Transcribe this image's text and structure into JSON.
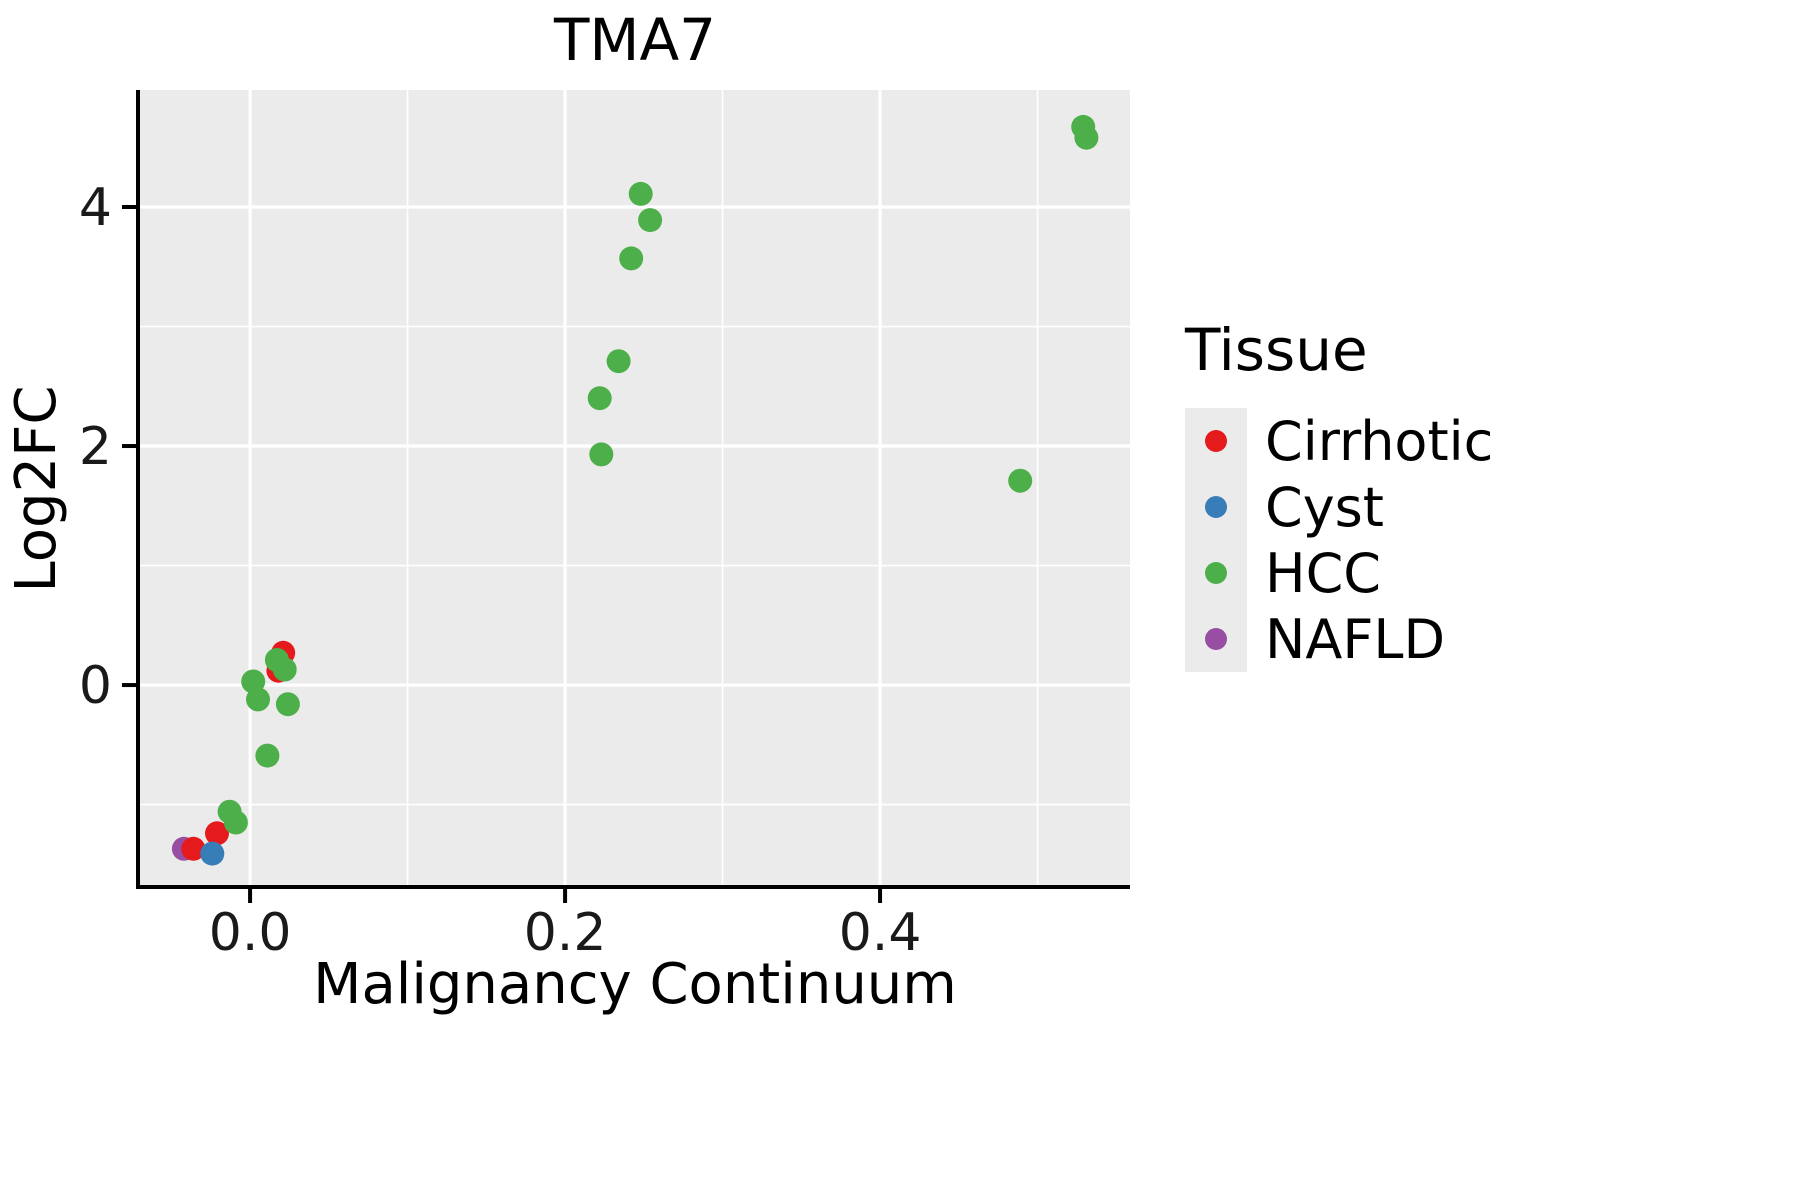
{
  "title": "TMA7",
  "legend": {
    "title": "Tissue",
    "items": [
      {
        "label": "Cirrhotic",
        "color": "#E41A1C"
      },
      {
        "label": "Cyst",
        "color": "#377EB8"
      },
      {
        "label": "HCC",
        "color": "#4DAF4A"
      },
      {
        "label": "NAFLD",
        "color": "#984EA3"
      }
    ]
  },
  "chart_data": {
    "type": "scatter",
    "title": "TMA7",
    "xlabel": "Malignancy Continuum",
    "ylabel": "Log2FC",
    "xlim": [
      -0.0699,
      0.5587
    ],
    "ylim": [
      -1.673,
      4.979
    ],
    "x_major_ticks": [
      0.0,
      0.2,
      0.4
    ],
    "x_tick_labels": [
      "0.0",
      "0.2",
      "0.4"
    ],
    "x_minor_ticks": [
      0.1,
      0.3,
      0.5
    ],
    "y_major_ticks": [
      0,
      2,
      4
    ],
    "y_tick_labels": [
      "0",
      "2",
      "4"
    ],
    "y_minor_ticks": [
      -1,
      1,
      3
    ],
    "panel_background": "#EBEBEB",
    "gridline_color": "#FFFFFF",
    "legend_position": "right",
    "series": [
      {
        "name": "NAFLD",
        "color": "#984EA3",
        "points": [
          [
            -0.042,
            -1.37
          ]
        ]
      },
      {
        "name": "Cirrhotic",
        "color": "#E41A1C",
        "points": [
          [
            0.021,
            0.27
          ],
          [
            0.018,
            0.12
          ],
          [
            -0.021,
            -1.24
          ],
          [
            -0.036,
            -1.37
          ]
        ]
      },
      {
        "name": "Cyst",
        "color": "#377EB8",
        "points": [
          [
            -0.024,
            -1.41
          ]
        ]
      },
      {
        "name": "HCC",
        "color": "#4DAF4A",
        "points": [
          [
            0.529,
            4.67
          ],
          [
            0.531,
            4.58
          ],
          [
            0.248,
            4.11
          ],
          [
            0.254,
            3.89
          ],
          [
            0.242,
            3.57
          ],
          [
            0.234,
            2.71
          ],
          [
            0.222,
            2.4
          ],
          [
            0.223,
            1.93
          ],
          [
            0.489,
            1.71
          ],
          [
            0.017,
            0.21
          ],
          [
            0.022,
            0.13
          ],
          [
            0.002,
            0.03
          ],
          [
            0.005,
            -0.12
          ],
          [
            0.024,
            -0.16
          ],
          [
            0.011,
            -0.59
          ],
          [
            -0.013,
            -1.06
          ],
          [
            -0.009,
            -1.15
          ]
        ]
      }
    ]
  }
}
